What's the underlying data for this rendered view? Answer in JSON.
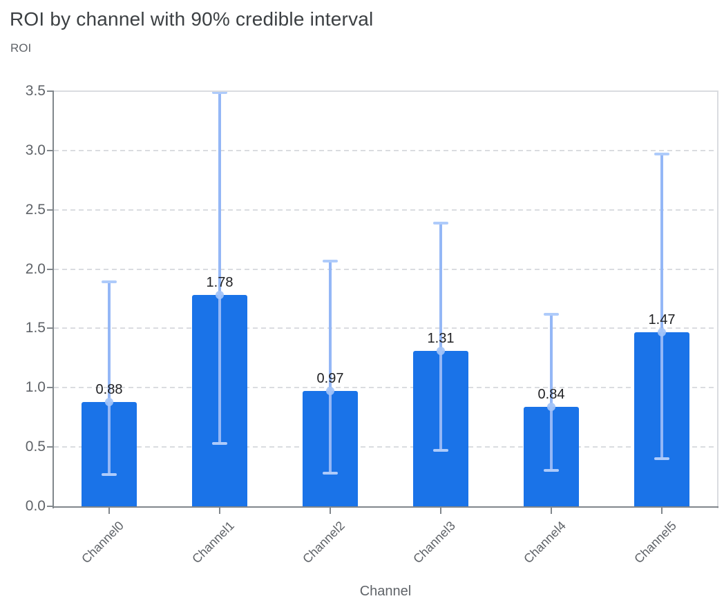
{
  "page": {
    "title": "ROI by channel with 90% credible interval",
    "y_axis_title": "ROI",
    "x_axis_title": "Channel"
  },
  "chart_data": {
    "type": "bar",
    "title": "ROI by channel with 90% credible interval",
    "subtitle": "ROI",
    "xlabel": "Channel",
    "ylabel": "ROI",
    "categories": [
      "Channel0",
      "Channel1",
      "Channel2",
      "Channel3",
      "Channel4",
      "Channel5"
    ],
    "values": [
      0.88,
      1.78,
      0.97,
      1.31,
      0.84,
      1.47
    ],
    "value_labels": [
      "0.88",
      "1.78",
      "0.97",
      "1.31",
      "0.84",
      "1.47"
    ],
    "error_interval_name": "90% credible interval",
    "error_low": [
      0.27,
      0.53,
      0.28,
      0.47,
      0.3,
      0.4
    ],
    "error_high": [
      1.89,
      3.49,
      2.07,
      2.39,
      1.62,
      2.97
    ],
    "ylim": [
      0,
      3.5
    ],
    "ytick_labels": [
      "0.0",
      "0.5",
      "1.0",
      "1.5",
      "2.0",
      "2.5",
      "3.0",
      "3.5"
    ],
    "grid": "horizontal dashed, no gridline at 0",
    "legend": "none",
    "x_tick_label_rotation_deg": 45,
    "colors": {
      "bar": "#1A73E8",
      "error_line": "#94B7F6",
      "error_cap": "#AECBFA",
      "mean_marker": "#A2C3F8",
      "gridline": "#DADCE0",
      "frame": "#DADCE0",
      "axis": "#80868B",
      "title_text": "#3C4043",
      "muted_text": "#5F6368",
      "value_label_text": "#202124"
    }
  }
}
